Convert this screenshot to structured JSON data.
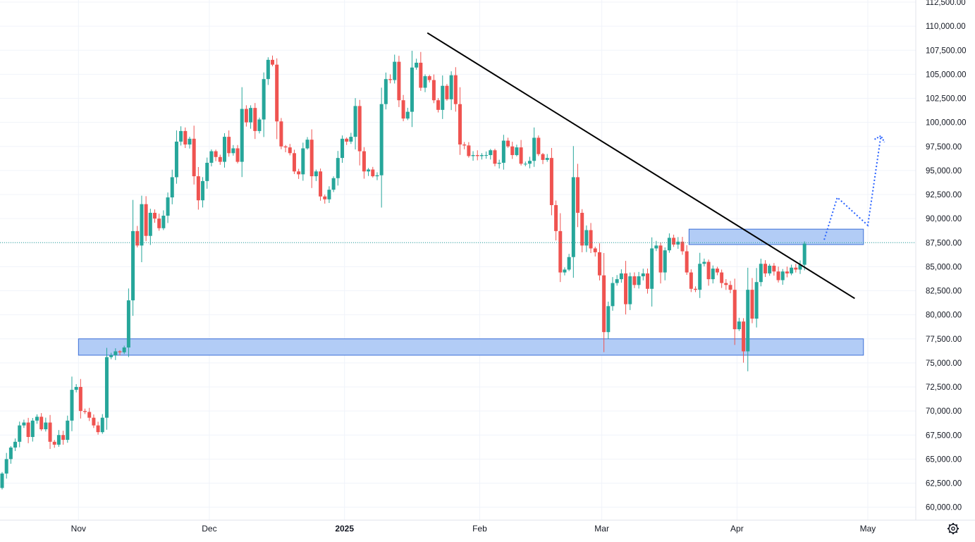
{
  "chart_data": {
    "type": "candlestick",
    "title": "",
    "xlabel": "",
    "ylabel": "",
    "ylim": [
      58500,
      112500
    ],
    "y_ticks": [
      "112,500.00",
      "110,000.00",
      "107,500.00",
      "105,000.00",
      "102,500.00",
      "100,000.00",
      "97,500.00",
      "95,000.00",
      "92,500.00",
      "90,000.00",
      "87,500.00",
      "85,000.00",
      "82,500.00",
      "80,000.00",
      "77,500.00",
      "75,000.00",
      "72,500.00",
      "70,000.00",
      "67,500.00",
      "65,000.00",
      "62,500.00",
      "60,000.00"
    ],
    "x_ticks": [
      {
        "label": "Nov",
        "date": "2024-11-01",
        "bold": false
      },
      {
        "label": "Dec",
        "date": "2024-12-01",
        "bold": false
      },
      {
        "label": "2025",
        "date": "2025-01-01",
        "bold": true
      },
      {
        "label": "Feb",
        "date": "2025-02-01",
        "bold": false
      },
      {
        "label": "Mar",
        "date": "2025-03-01",
        "bold": false
      },
      {
        "label": "Apr",
        "date": "2025-04-01",
        "bold": false
      },
      {
        "label": "May",
        "date": "2025-05-01",
        "bold": false
      }
    ],
    "x_range": [
      "2024-10-14",
      "2025-05-12"
    ],
    "grid": true,
    "last_price_line": 87500,
    "colors": {
      "up": "#26a69a",
      "down": "#ef5350",
      "trendline": "#000000",
      "zone_fill": "#aec9f5",
      "zone_border": "#3b6fd8",
      "projection": "#2962ff",
      "grid": "#f0f3fa",
      "text": "#131722"
    },
    "series": [
      {
        "name": "",
        "closes": [
          63500,
          65000,
          66200,
          66800,
          68500,
          68800,
          67300,
          69000,
          69400,
          68100,
          68800,
          66800,
          66500,
          67500,
          67000,
          69000,
          72200,
          72500,
          70000,
          69900,
          69300,
          68500,
          67800,
          69300,
          75600,
          75800,
          76200,
          76100,
          76600,
          81500,
          88700,
          87200,
          91500,
          88200,
          90600,
          90000,
          89000,
          90300,
          92200,
          94300,
          98000,
          99100,
          97700,
          98300,
          94400,
          91900,
          93900,
          95800,
          97000,
          96400,
          95900,
          98500,
          96800,
          97300,
          95900,
          101400,
          100000,
          101500,
          99100,
          100300,
          104500,
          106500,
          106000,
          100100,
          97500,
          97400,
          96800,
          94900,
          94600,
          97300,
          98200,
          94400,
          94900,
          92300,
          92000,
          93000,
          94200,
          96300,
          98300,
          98000,
          98500,
          101700,
          97000,
          94900,
          95100,
          94400,
          94500,
          101900,
          104500,
          104400,
          106300,
          102300,
          100400,
          101100,
          105700,
          106200,
          103600,
          104800,
          104400,
          102300,
          101300,
          103800,
          102400,
          104900,
          101900,
          97700,
          97600,
          96500,
          96600,
          96500,
          96600,
          96600,
          97100,
          95700,
          95800,
          98100,
          97500,
          96600,
          97400,
          95700,
          95700,
          96000,
          98400,
          96700,
          96100,
          96300,
          91400,
          88700,
          84400,
          84700,
          86000,
          94300,
          90600,
          87200,
          88800,
          86900,
          86500,
          84100,
          78200,
          80900,
          83300,
          83700,
          84300,
          81100,
          84000,
          83100,
          84000,
          84300,
          82700,
          86900,
          87200,
          84400,
          86700,
          88000,
          87300,
          87600,
          86600,
          84400,
          82700,
          82600,
          85300,
          85500,
          83700,
          84800,
          84400,
          83300,
          83100,
          82600,
          78500,
          79300,
          76200,
          82600,
          79600,
          83400,
          85300,
          84300,
          85100,
          84500,
          83600,
          84500,
          84300,
          84900,
          84700,
          85200,
          87400
        ]
      }
    ],
    "annotations": [
      {
        "type": "trendline",
        "from": {
          "date": "2025-01-20",
          "value": 109300
        },
        "to": {
          "date": "2025-04-28",
          "value": 81700
        }
      },
      {
        "type": "zone",
        "x_from": "2024-11-01",
        "x_to": "2025-04-30",
        "y_from": 75800,
        "y_to": 77500
      },
      {
        "type": "zone",
        "x_from": "2025-03-21",
        "x_to": "2025-04-30",
        "y_from": 87300,
        "y_to": 88900
      },
      {
        "type": "projection",
        "points": [
          {
            "date": "2025-04-21",
            "value": 87800
          },
          {
            "date": "2025-04-24",
            "value": 92200
          },
          {
            "date": "2025-05-01",
            "value": 89300
          },
          {
            "date": "2025-05-04",
            "value": 98600
          }
        ]
      }
    ]
  },
  "ui": {
    "settings_icon": "gear-icon"
  }
}
